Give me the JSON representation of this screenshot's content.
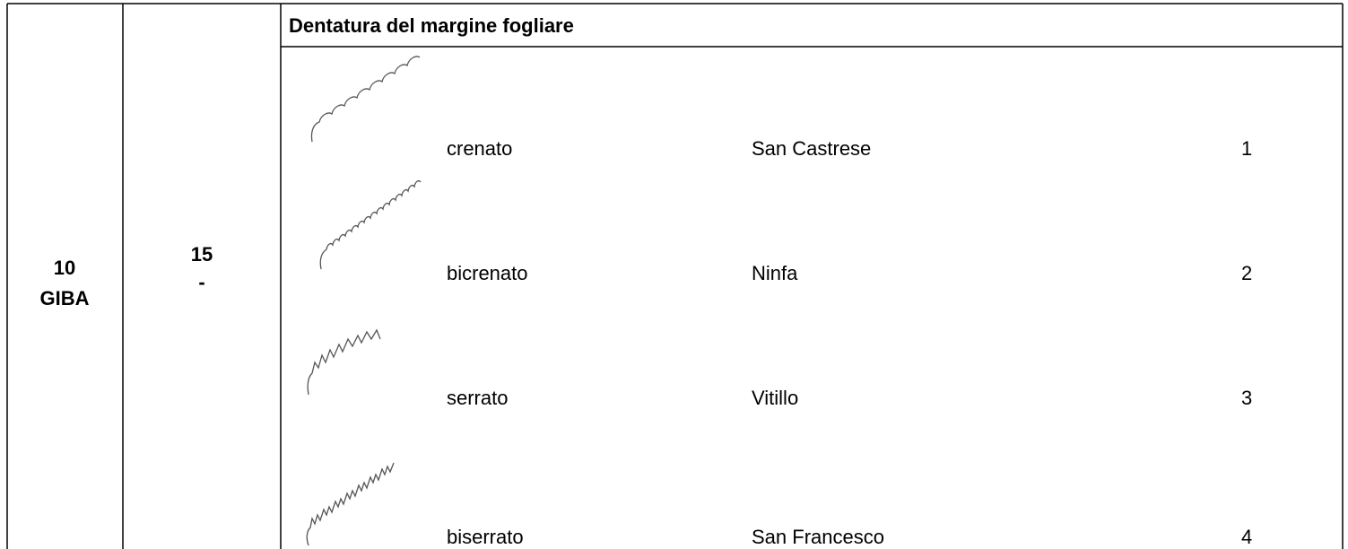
{
  "left": {
    "code": "10",
    "name": "GIBA"
  },
  "middle": {
    "number": "15",
    "dash": "-"
  },
  "header": "Dentatura del margine fogliare",
  "rows": [
    {
      "term": "crenato",
      "variety": "San Castrese",
      "code": 1
    },
    {
      "term": "bicrenato",
      "variety": "Ninfa",
      "code": 2
    },
    {
      "term": "serrato",
      "variety": "Vitillo",
      "code": 3
    },
    {
      "term": "biserrato",
      "variety": "San Francesco",
      "code": 4
    }
  ]
}
